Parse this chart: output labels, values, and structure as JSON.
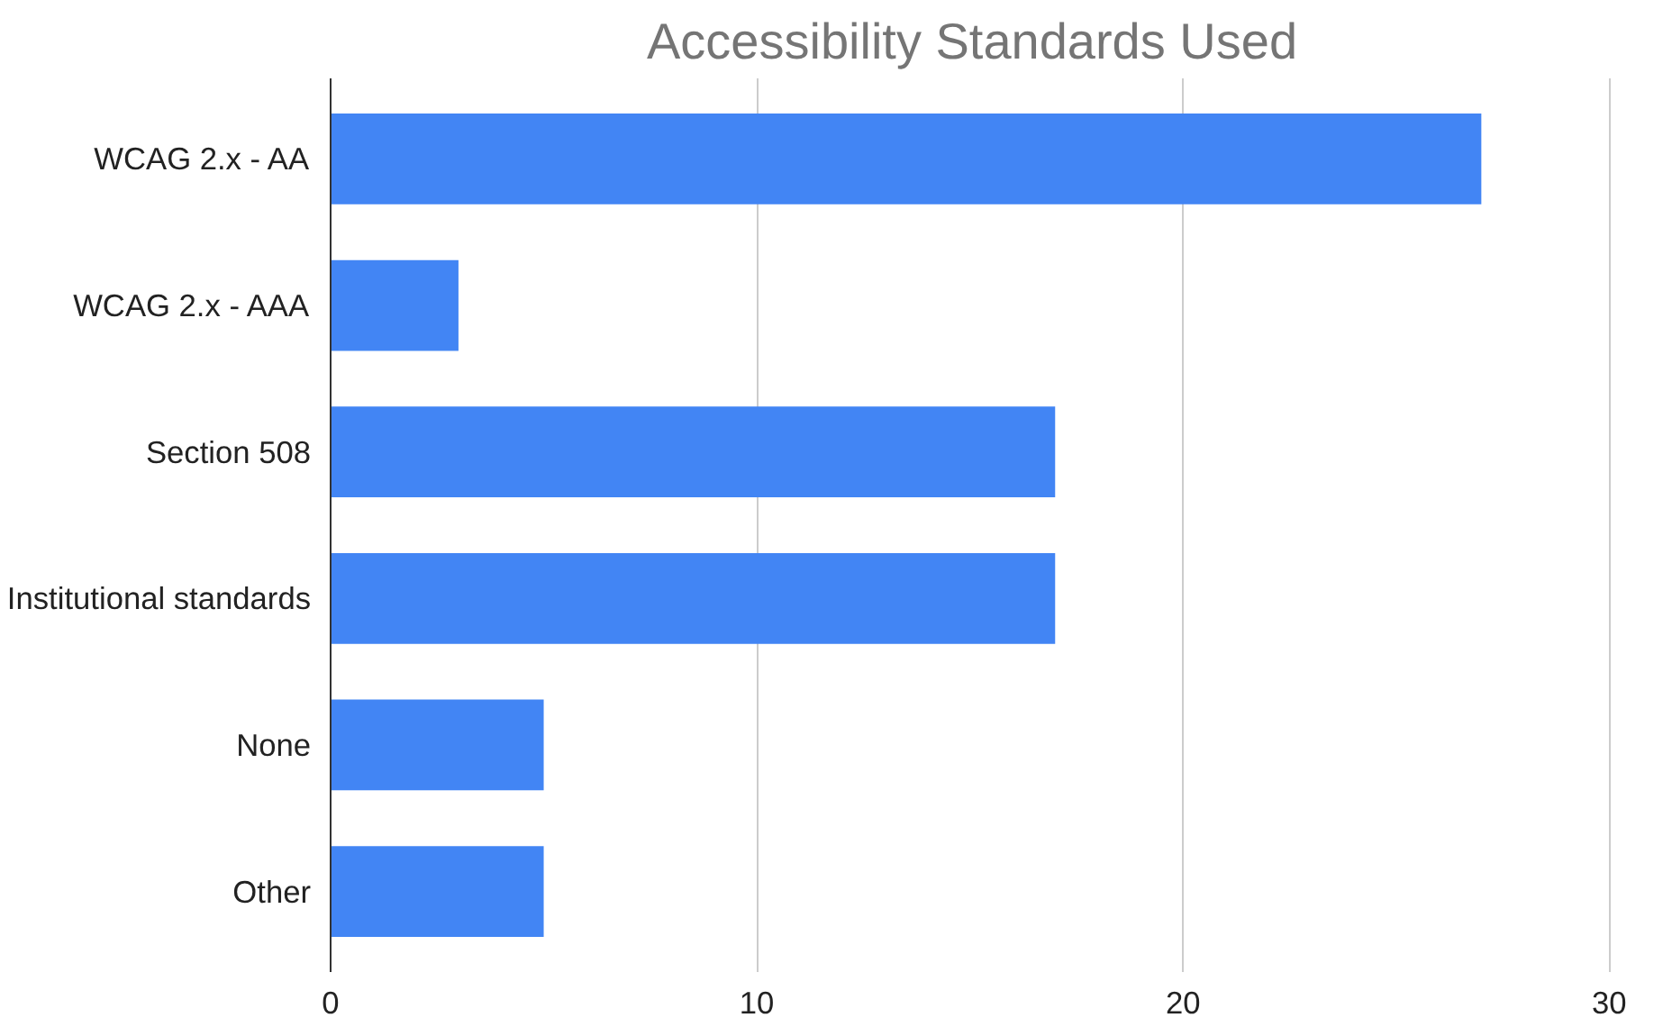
{
  "chart_data": {
    "type": "bar",
    "orientation": "horizontal",
    "title": "Accessibility Standards Used",
    "categories": [
      "WCAG 2.x - AA",
      "WCAG 2.x - AAA",
      "Section 508",
      "Institutional standards",
      "None",
      "Other"
    ],
    "values": [
      27,
      3,
      17,
      17,
      5,
      5
    ],
    "color": "#4285f4",
    "xlim": [
      0,
      30
    ],
    "xticks": [
      0,
      10,
      20,
      30
    ],
    "grid": "x"
  }
}
